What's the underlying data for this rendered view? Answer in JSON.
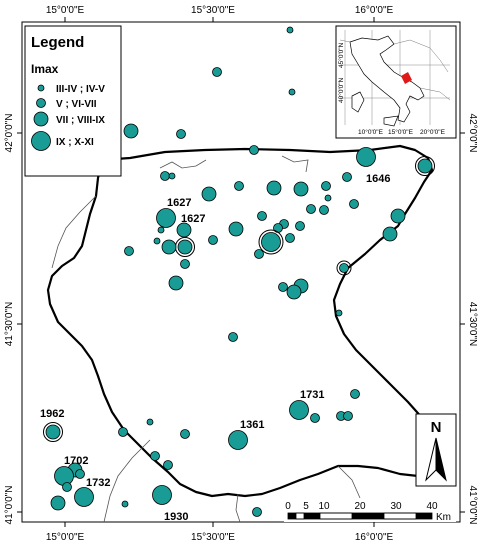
{
  "axes": {
    "top_ticks": [
      "15°0'0\"E",
      "15°30'0\"E",
      "16°0'0\"E"
    ],
    "bottom_ticks": [
      "15°0'0\"E",
      "15°30'0\"E",
      "16°0'0\"E"
    ],
    "left_ticks": [
      "42°0'0\"N",
      "41°30'0\"N",
      "41°0'0\"N"
    ],
    "right_ticks": [
      "42°0'0\"N",
      "41°30'0\"N",
      "41°0'0\"N"
    ]
  },
  "legend": {
    "title": "Legend",
    "subtitle": "Imax",
    "items": [
      {
        "label": "III-IV ; IV-V",
        "size_class": 1
      },
      {
        "label": "V ; VI-VII",
        "size_class": 2
      },
      {
        "label": "VII ; VIII-IX",
        "size_class": 3
      },
      {
        "label": "IX ; X-XI",
        "size_class": 4
      }
    ]
  },
  "inset": {
    "lat_labels": [
      "45°0'0\"N",
      "40°0'0\"N"
    ],
    "lon_labels": [
      "10°0'0\"E",
      "15°0'0\"E",
      "20°0'0\"E"
    ]
  },
  "event_labels": [
    "1627",
    "1627",
    "1646",
    "1731",
    "1361",
    "1962",
    "1702",
    "1732",
    "1930"
  ],
  "scale_bar": {
    "ticks": [
      "0",
      "5",
      "10",
      "20",
      "30",
      "40"
    ],
    "unit": "Km"
  },
  "north_arrow": {
    "label": "N"
  },
  "colors": {
    "marker_fill": "#1a9c96",
    "marker_stroke": "#000000",
    "boundary": "#000000",
    "inset_highlight": "#e01818"
  }
}
